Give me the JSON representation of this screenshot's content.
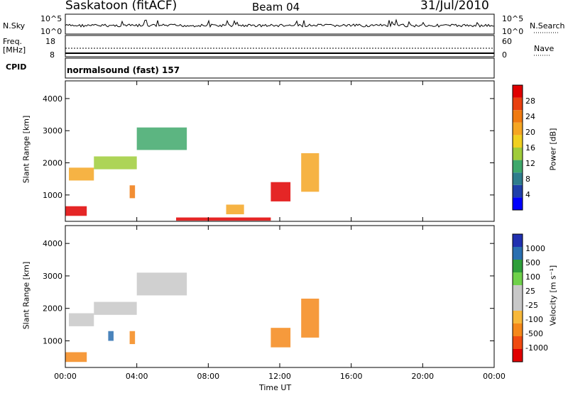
{
  "header": {
    "station": "Saskatoon (fitACF)",
    "beam": "Beam 04",
    "date": "31/Jul/2010"
  },
  "panels": {
    "nsky_label": "N.Sky",
    "nsearch_label": "N.Search",
    "nsky_ticks": [
      "10^5",
      "10^0"
    ],
    "nsearch_ticks": [
      "10^5",
      "10^0"
    ],
    "freq_label_1": "Freq.",
    "freq_label_2": "[MHz]",
    "freq_ticks": [
      "18",
      "8"
    ],
    "nave_label": "Nave",
    "nave_ticks": [
      "60",
      "0"
    ],
    "cpid_label": "CPID",
    "cpid_text": "normalsound (fast) 157"
  },
  "colors": {
    "power": [
      "#0000ff",
      "#1f3faa",
      "#2e7d8c",
      "#3fa86b",
      "#9fcc3a",
      "#f0d020",
      "#f5a623",
      "#f07a10",
      "#e84010",
      "#e00000"
    ],
    "velocity": [
      "#e00000",
      "#f04a10",
      "#f5881a",
      "#f7b83a",
      "#c8c8c8",
      "#c8c8c8",
      "#6fd14a",
      "#2e9e3a",
      "#2a6fb0",
      "#2030b0"
    ],
    "ground": "#b4b4b4"
  },
  "chart_data": [
    {
      "type": "heatmap",
      "title": "",
      "xlabel": "",
      "ylabel": "Slant Range [km]",
      "x_ticks": [
        "00:00",
        "04:00",
        "08:00",
        "12:00",
        "16:00",
        "20:00",
        "00:00"
      ],
      "y_ticks": [
        "1000",
        "2000",
        "3000",
        "4000"
      ],
      "xlim": [
        0,
        24
      ],
      "ylim": [
        180,
        4550
      ],
      "colorbar": {
        "label": "Power [dB]",
        "ticks": [
          "4",
          "8",
          "12",
          "16",
          "20",
          "24",
          "28"
        ],
        "range": [
          0,
          32
        ]
      },
      "features": [
        {
          "t0": 0.2,
          "t1": 1.6,
          "r0": 1450,
          "r1": 1850,
          "level": 22
        },
        {
          "t0": 1.6,
          "t1": 4.0,
          "r0": 1800,
          "r1": 2200,
          "level": 14
        },
        {
          "t0": 4.0,
          "t1": 6.8,
          "r0": 2400,
          "r1": 3100,
          "level": 12
        },
        {
          "t0": 0.0,
          "t1": 1.2,
          "r0": 350,
          "r1": 650,
          "level": 30
        },
        {
          "t0": 3.6,
          "t1": 3.9,
          "r0": 900,
          "r1": 1300,
          "level": 24
        },
        {
          "t0": 11.5,
          "t1": 12.6,
          "r0": 800,
          "r1": 1400,
          "level": 30
        },
        {
          "t0": 13.2,
          "t1": 14.2,
          "r0": 1100,
          "r1": 2300,
          "level": 20
        },
        {
          "t0": 9.0,
          "t1": 10.0,
          "r0": 400,
          "r1": 700,
          "level": 20
        },
        {
          "t0": 6.2,
          "t1": 11.5,
          "r0": 200,
          "r1": 300,
          "level": 30
        }
      ]
    },
    {
      "type": "heatmap",
      "title": "",
      "xlabel": "Time UT",
      "ylabel": "Slant Range [km]",
      "x_ticks": [
        "00:00",
        "04:00",
        "08:00",
        "12:00",
        "16:00",
        "20:00",
        "00:00"
      ],
      "y_ticks": [
        "1000",
        "2000",
        "3000",
        "4000"
      ],
      "xlim": [
        0,
        24
      ],
      "ylim": [
        180,
        4550
      ],
      "colorbar": {
        "label": "Velocity [m s⁻¹]",
        "ticks": [
          "1000",
          "500",
          "100",
          "25",
          "-25",
          "-100",
          "-500",
          "-1000"
        ]
      },
      "features": [
        {
          "t0": 0.2,
          "t1": 1.6,
          "r0": 1450,
          "r1": 1850,
          "velocity": 0
        },
        {
          "t0": 1.6,
          "t1": 4.0,
          "r0": 1800,
          "r1": 2200,
          "velocity": 0
        },
        {
          "t0": 4.0,
          "t1": 6.8,
          "r0": 2400,
          "r1": 3100,
          "velocity": 0
        },
        {
          "t0": 0.0,
          "t1": 1.2,
          "r0": 350,
          "r1": 650,
          "velocity": -150
        },
        {
          "t0": 3.6,
          "t1": 3.9,
          "r0": 900,
          "r1": 1300,
          "velocity": -150
        },
        {
          "t0": 11.5,
          "t1": 12.6,
          "r0": 800,
          "r1": 1400,
          "velocity": -200
        },
        {
          "t0": 13.2,
          "t1": 14.2,
          "r0": 1100,
          "r1": 2300,
          "velocity": -200
        },
        {
          "t0": 2.4,
          "t1": 2.7,
          "r0": 1000,
          "r1": 1300,
          "velocity": 150
        }
      ]
    }
  ]
}
